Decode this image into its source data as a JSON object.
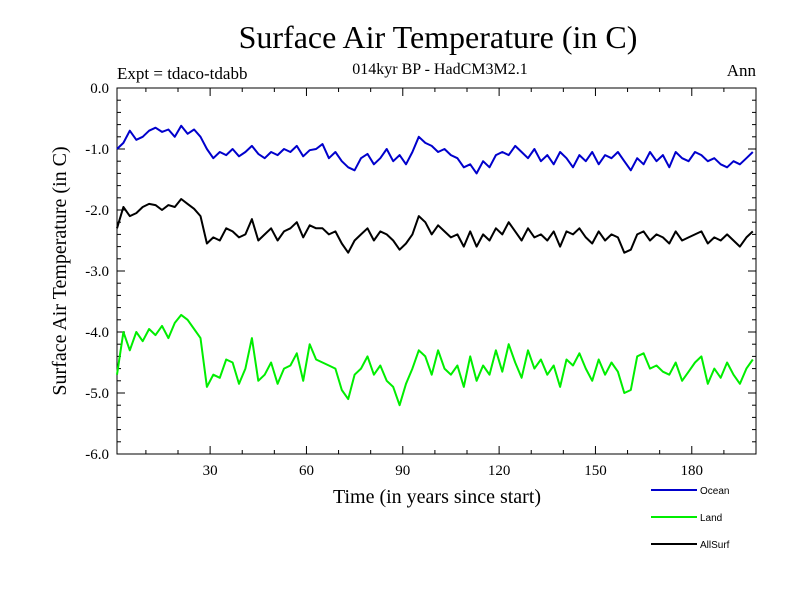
{
  "chart_data": {
    "type": "line",
    "title": "Surface Air Temperature (in C)",
    "subtitle": "014kyr BP - HadCM3M2.1",
    "experiment_label": "Expt = tdaco-tdabb",
    "season_label": "Ann",
    "xlabel": "Time (in years since start)",
    "ylabel": "Surface Air Temperature (in C)",
    "xlim": [
      1,
      200
    ],
    "ylim": [
      -6.0,
      0.0
    ],
    "x_ticks": [
      "30",
      "60",
      "90",
      "120",
      "150",
      "180"
    ],
    "y_ticks": [
      "0.0",
      "-1.0",
      "-2.0",
      "-3.0",
      "-4.0",
      "-5.0",
      "-6.0"
    ],
    "legend_position": "bottom-right",
    "series": [
      {
        "name": "Ocean",
        "color": "#0000cc",
        "x": [
          1,
          3,
          5,
          7,
          9,
          11,
          13,
          15,
          17,
          19,
          21,
          23,
          25,
          27,
          29,
          31,
          33,
          35,
          37,
          39,
          41,
          43,
          45,
          47,
          49,
          51,
          53,
          55,
          57,
          59,
          61,
          63,
          65,
          67,
          69,
          71,
          73,
          75,
          77,
          79,
          81,
          83,
          85,
          87,
          89,
          91,
          93,
          95,
          97,
          99,
          101,
          103,
          105,
          107,
          109,
          111,
          113,
          115,
          117,
          119,
          121,
          123,
          125,
          127,
          129,
          131,
          133,
          135,
          137,
          139,
          141,
          143,
          145,
          147,
          149,
          151,
          153,
          155,
          157,
          159,
          161,
          163,
          165,
          167,
          169,
          171,
          173,
          175,
          177,
          179,
          181,
          183,
          185,
          187,
          189,
          191,
          193,
          195,
          197,
          199
        ],
        "values": [
          -1.0,
          -0.9,
          -0.7,
          -0.85,
          -0.8,
          -0.7,
          -0.65,
          -0.72,
          -0.68,
          -0.8,
          -0.62,
          -0.75,
          -0.68,
          -0.8,
          -1.0,
          -1.15,
          -1.05,
          -1.1,
          -1.0,
          -1.12,
          -1.05,
          -0.95,
          -1.08,
          -1.15,
          -1.05,
          -1.1,
          -1.0,
          -1.05,
          -0.95,
          -1.12,
          -1.02,
          -1.0,
          -0.92,
          -1.15,
          -1.05,
          -1.2,
          -1.3,
          -1.35,
          -1.15,
          -1.08,
          -1.25,
          -1.15,
          -1.0,
          -1.2,
          -1.1,
          -1.25,
          -1.05,
          -0.8,
          -0.9,
          -0.95,
          -1.05,
          -1.0,
          -1.1,
          -1.15,
          -1.3,
          -1.25,
          -1.4,
          -1.2,
          -1.3,
          -1.1,
          -1.05,
          -1.1,
          -0.95,
          -1.05,
          -1.15,
          -1.0,
          -1.2,
          -1.1,
          -1.25,
          -1.05,
          -1.15,
          -1.3,
          -1.1,
          -1.2,
          -1.05,
          -1.25,
          -1.1,
          -1.15,
          -1.05,
          -1.2,
          -1.35,
          -1.15,
          -1.25,
          -1.05,
          -1.2,
          -1.1,
          -1.3,
          -1.05,
          -1.15,
          -1.2,
          -1.05,
          -1.1,
          -1.2,
          -1.15,
          -1.25,
          -1.3,
          -1.2,
          -1.25,
          -1.15,
          -1.05
        ]
      },
      {
        "name": "Land",
        "color": "#00ee00",
        "x": [
          1,
          3,
          5,
          7,
          9,
          11,
          13,
          15,
          17,
          19,
          21,
          23,
          25,
          27,
          29,
          31,
          33,
          35,
          37,
          39,
          41,
          43,
          45,
          47,
          49,
          51,
          53,
          55,
          57,
          59,
          61,
          63,
          65,
          67,
          69,
          71,
          73,
          75,
          77,
          79,
          81,
          83,
          85,
          87,
          89,
          91,
          93,
          95,
          97,
          99,
          101,
          103,
          105,
          107,
          109,
          111,
          113,
          115,
          117,
          119,
          121,
          123,
          125,
          127,
          129,
          131,
          133,
          135,
          137,
          139,
          141,
          143,
          145,
          147,
          149,
          151,
          153,
          155,
          157,
          159,
          161,
          163,
          165,
          167,
          169,
          171,
          173,
          175,
          177,
          179,
          181,
          183,
          185,
          187,
          189,
          191,
          193,
          195,
          197,
          199
        ],
        "values": [
          -4.7,
          -4.0,
          -4.3,
          -4.0,
          -4.15,
          -3.95,
          -4.05,
          -3.9,
          -4.1,
          -3.85,
          -3.72,
          -3.8,
          -3.95,
          -4.1,
          -4.9,
          -4.7,
          -4.75,
          -4.45,
          -4.5,
          -4.85,
          -4.6,
          -4.1,
          -4.8,
          -4.7,
          -4.5,
          -4.85,
          -4.6,
          -4.55,
          -4.35,
          -4.8,
          -4.2,
          -4.45,
          -4.5,
          -4.55,
          -4.6,
          -4.95,
          -5.1,
          -4.7,
          -4.6,
          -4.4,
          -4.7,
          -4.55,
          -4.8,
          -4.9,
          -5.2,
          -4.85,
          -4.6,
          -4.3,
          -4.4,
          -4.7,
          -4.3,
          -4.6,
          -4.7,
          -4.55,
          -4.9,
          -4.4,
          -4.8,
          -4.55,
          -4.7,
          -4.3,
          -4.65,
          -4.2,
          -4.5,
          -4.75,
          -4.3,
          -4.6,
          -4.45,
          -4.7,
          -4.55,
          -4.9,
          -4.45,
          -4.55,
          -4.35,
          -4.6,
          -4.8,
          -4.45,
          -4.7,
          -4.5,
          -4.65,
          -5.0,
          -4.95,
          -4.4,
          -4.35,
          -4.6,
          -4.55,
          -4.65,
          -4.7,
          -4.5,
          -4.8,
          -4.65,
          -4.5,
          -4.4,
          -4.85,
          -4.6,
          -4.75,
          -4.5,
          -4.7,
          -4.85,
          -4.6,
          -4.45
        ]
      },
      {
        "name": "AllSurf",
        "color": "#000000",
        "x": [
          1,
          3,
          5,
          7,
          9,
          11,
          13,
          15,
          17,
          19,
          21,
          23,
          25,
          27,
          29,
          31,
          33,
          35,
          37,
          39,
          41,
          43,
          45,
          47,
          49,
          51,
          53,
          55,
          57,
          59,
          61,
          63,
          65,
          67,
          69,
          71,
          73,
          75,
          77,
          79,
          81,
          83,
          85,
          87,
          89,
          91,
          93,
          95,
          97,
          99,
          101,
          103,
          105,
          107,
          109,
          111,
          113,
          115,
          117,
          119,
          121,
          123,
          125,
          127,
          129,
          131,
          133,
          135,
          137,
          139,
          141,
          143,
          145,
          147,
          149,
          151,
          153,
          155,
          157,
          159,
          161,
          163,
          165,
          167,
          169,
          171,
          173,
          175,
          177,
          179,
          181,
          183,
          185,
          187,
          189,
          191,
          193,
          195,
          197,
          199
        ],
        "values": [
          -2.3,
          -1.95,
          -2.1,
          -2.05,
          -1.95,
          -1.9,
          -1.92,
          -2.0,
          -1.92,
          -1.95,
          -1.82,
          -1.9,
          -1.98,
          -2.1,
          -2.55,
          -2.45,
          -2.5,
          -2.3,
          -2.35,
          -2.45,
          -2.4,
          -2.15,
          -2.5,
          -2.4,
          -2.3,
          -2.5,
          -2.35,
          -2.3,
          -2.2,
          -2.45,
          -2.25,
          -2.3,
          -2.3,
          -2.4,
          -2.35,
          -2.55,
          -2.7,
          -2.5,
          -2.4,
          -2.3,
          -2.5,
          -2.35,
          -2.4,
          -2.5,
          -2.65,
          -2.55,
          -2.4,
          -2.1,
          -2.2,
          -2.4,
          -2.25,
          -2.35,
          -2.45,
          -2.4,
          -2.6,
          -2.35,
          -2.6,
          -2.4,
          -2.5,
          -2.3,
          -2.4,
          -2.2,
          -2.35,
          -2.5,
          -2.3,
          -2.45,
          -2.4,
          -2.5,
          -2.35,
          -2.6,
          -2.35,
          -2.4,
          -2.3,
          -2.45,
          -2.55,
          -2.35,
          -2.5,
          -2.4,
          -2.45,
          -2.7,
          -2.65,
          -2.4,
          -2.35,
          -2.5,
          -2.4,
          -2.45,
          -2.55,
          -2.35,
          -2.5,
          -2.45,
          -2.4,
          -2.35,
          -2.55,
          -2.45,
          -2.5,
          -2.4,
          -2.5,
          -2.6,
          -2.45,
          -2.35
        ]
      }
    ]
  }
}
